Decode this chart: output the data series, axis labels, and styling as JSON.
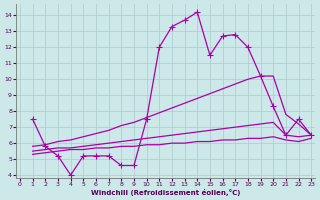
{
  "xlabel": "Windchill (Refroidissement éolien,°C)",
  "xlim": [
    0,
    23
  ],
  "ylim": [
    3.8,
    14.7
  ],
  "xticks": [
    0,
    1,
    2,
    3,
    4,
    5,
    6,
    7,
    8,
    9,
    10,
    11,
    12,
    13,
    14,
    15,
    16,
    17,
    18,
    19,
    20,
    21,
    22,
    23
  ],
  "yticks": [
    4,
    5,
    6,
    7,
    8,
    9,
    10,
    11,
    12,
    13,
    14
  ],
  "bg_color": "#cce8e8",
  "grid_color": "#aacccc",
  "line_color": "#aa00aa",
  "line1_x": [
    1,
    2,
    3,
    4,
    5,
    6,
    7,
    8,
    9,
    10,
    11,
    12,
    13,
    14,
    15,
    16,
    17,
    18,
    19,
    20,
    21,
    22,
    23
  ],
  "line1_y": [
    7.5,
    5.8,
    5.2,
    4.0,
    5.2,
    5.2,
    5.2,
    4.6,
    4.6,
    7.5,
    12.0,
    13.3,
    13.7,
    14.2,
    11.5,
    12.7,
    12.8,
    12.0,
    10.2,
    8.3,
    6.5,
    7.5,
    6.5
  ],
  "line2_x": [
    1,
    2,
    3,
    4,
    5,
    6,
    7,
    8,
    9,
    10,
    11,
    12,
    13,
    14,
    15,
    16,
    17,
    18,
    19,
    20,
    21,
    22,
    23
  ],
  "line2_y": [
    5.8,
    5.9,
    6.1,
    6.2,
    6.4,
    6.6,
    6.8,
    7.1,
    7.3,
    7.6,
    7.9,
    8.2,
    8.5,
    8.8,
    9.1,
    9.4,
    9.7,
    10.0,
    10.2,
    10.2,
    7.8,
    7.2,
    6.5
  ],
  "line3_x": [
    1,
    2,
    3,
    4,
    5,
    6,
    7,
    8,
    9,
    10,
    11,
    12,
    13,
    14,
    15,
    16,
    17,
    18,
    19,
    20,
    21,
    22,
    23
  ],
  "line3_y": [
    5.5,
    5.6,
    5.7,
    5.7,
    5.8,
    5.9,
    6.0,
    6.1,
    6.2,
    6.3,
    6.4,
    6.5,
    6.6,
    6.7,
    6.8,
    6.9,
    7.0,
    7.1,
    7.2,
    7.3,
    6.5,
    6.4,
    6.5
  ],
  "line4_x": [
    1,
    2,
    3,
    4,
    5,
    6,
    7,
    8,
    9,
    10,
    11,
    12,
    13,
    14,
    15,
    16,
    17,
    18,
    19,
    20,
    21,
    22,
    23
  ],
  "line4_y": [
    5.3,
    5.4,
    5.5,
    5.6,
    5.6,
    5.7,
    5.7,
    5.8,
    5.8,
    5.9,
    5.9,
    6.0,
    6.0,
    6.1,
    6.1,
    6.2,
    6.2,
    6.3,
    6.3,
    6.4,
    6.2,
    6.1,
    6.3
  ]
}
